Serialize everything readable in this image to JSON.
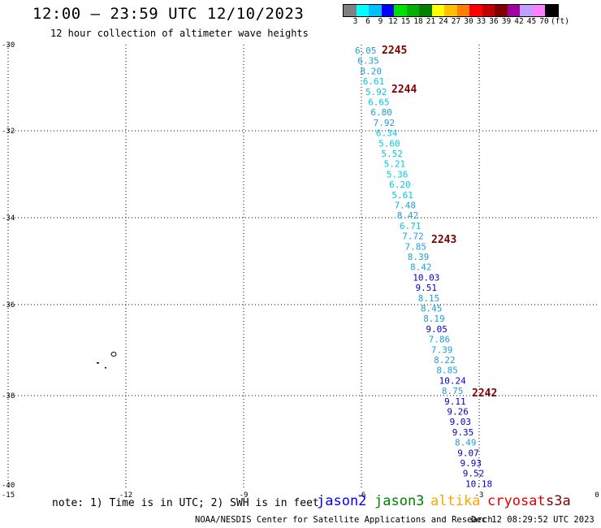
{
  "title": "12:00 – 23:59 UTC 12/10/2023",
  "subtitle": "12 hour collection of altimeter wave heights",
  "colorbar": {
    "unit": "(ft)",
    "colors": [
      "#808080",
      "#00ffff",
      "#00bfff",
      "#0000ff",
      "#00e000",
      "#00b000",
      "#008000",
      "#ffff00",
      "#ffc000",
      "#ff8000",
      "#ff0000",
      "#c00000",
      "#800000",
      "#a000a0",
      "#c0a0ff",
      "#ff80ff",
      "#000000"
    ],
    "labels": [
      "3",
      "6",
      "9",
      "12",
      "15",
      "18",
      "21",
      "24",
      "27",
      "30",
      "33",
      "36",
      "39",
      "42",
      "45",
      "70"
    ]
  },
  "axes": {
    "lon_ticks": [
      "-15",
      "-12",
      "-9",
      "-6",
      "-3",
      "0"
    ],
    "lat_ticks": [
      "-30",
      "-32",
      "-34",
      "-36",
      "-38",
      "-40"
    ]
  },
  "passes": [
    {
      "label": "2245"
    },
    {
      "label": "2244"
    },
    {
      "label": "2243"
    },
    {
      "label": "2242"
    }
  ],
  "track_values": [
    {
      "v": "6.05",
      "c": "#1e9fd8"
    },
    {
      "v": "6.35",
      "c": "#1e9fd8"
    },
    {
      "v": "8.20",
      "c": "#1e9fd8"
    },
    {
      "v": "6.61",
      "c": "#00c8e8"
    },
    {
      "v": "5.92",
      "c": "#00c8e8"
    },
    {
      "v": "6.65",
      "c": "#00c8e8"
    },
    {
      "v": "6.80",
      "c": "#1e9fd8"
    },
    {
      "v": "7.92",
      "c": "#1e9fd8"
    },
    {
      "v": "6.34",
      "c": "#00c8e8"
    },
    {
      "v": "5.60",
      "c": "#00c8e8"
    },
    {
      "v": "5.52",
      "c": "#00c8e8"
    },
    {
      "v": "5.21",
      "c": "#00c8e8"
    },
    {
      "v": "5.36",
      "c": "#00c8e8"
    },
    {
      "v": "6.20",
      "c": "#00c8e8"
    },
    {
      "v": "5.61",
      "c": "#00c8e8"
    },
    {
      "v": "7.48",
      "c": "#1e9fd8"
    },
    {
      "v": "8.42",
      "c": "#1e9fd8"
    },
    {
      "v": "6.71",
      "c": "#00c8e8"
    },
    {
      "v": "7.72",
      "c": "#1e9fd8"
    },
    {
      "v": "7.85",
      "c": "#1e9fd8"
    },
    {
      "v": "8.39",
      "c": "#1e9fd8"
    },
    {
      "v": "8.42",
      "c": "#1e9fd8"
    },
    {
      "v": "10.03",
      "c": "#0000cc"
    },
    {
      "v": "9.51",
      "c": "#0000cc"
    },
    {
      "v": "8.15",
      "c": "#1e9fd8"
    },
    {
      "v": "8.45",
      "c": "#1e9fd8"
    },
    {
      "v": "8.19",
      "c": "#1e9fd8"
    },
    {
      "v": "9.05",
      "c": "#0000cc"
    },
    {
      "v": "7.86",
      "c": "#1e9fd8"
    },
    {
      "v": "7.39",
      "c": "#1e9fd8"
    },
    {
      "v": "8.22",
      "c": "#1e9fd8"
    },
    {
      "v": "8.85",
      "c": "#1e9fd8"
    },
    {
      "v": "10.24",
      "c": "#0000cc"
    },
    {
      "v": "8.75",
      "c": "#1e9fd8"
    },
    {
      "v": "9.11",
      "c": "#0000cc"
    },
    {
      "v": "9.26",
      "c": "#0000cc"
    },
    {
      "v": "9.03",
      "c": "#0000cc"
    },
    {
      "v": "9.35",
      "c": "#0000cc"
    },
    {
      "v": "8.49",
      "c": "#1e9fd8"
    },
    {
      "v": "9.07",
      "c": "#0000cc"
    },
    {
      "v": "9.93",
      "c": "#0000cc"
    },
    {
      "v": "9.52",
      "c": "#0000cc"
    },
    {
      "v": "10.18",
      "c": "#0000cc"
    }
  ],
  "note": "note: 1) Time is in UTC; 2) SWH is in feet",
  "legend": [
    {
      "label": "jason2",
      "color": "#0000ff"
    },
    {
      "label": "jason3",
      "color": "#008000"
    },
    {
      "label": "altika",
      "color": "#ffa500"
    },
    {
      "label": "cryosat",
      "color": "#e00000"
    },
    {
      "label": "s3a",
      "color": "#800000"
    }
  ],
  "credit": "NOAA/NESDIS Center for Satellite Applications and Research",
  "timestamp": "Dec 12 08:29:52 UTC 2023"
}
